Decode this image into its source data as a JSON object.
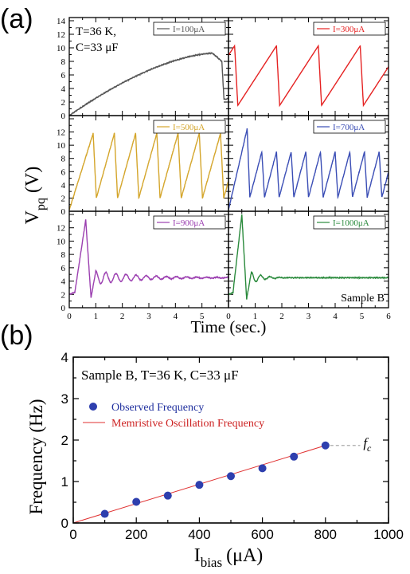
{
  "chart_data": [
    {
      "panel_label": "(a)",
      "type": "line",
      "ylabel": "V",
      "ylabel_sub": "pq",
      "ylabel_unit": "(V)",
      "xlabel": "Time (sec.)",
      "xlim": [
        0,
        6
      ],
      "x_ticks": [
        "0",
        "1",
        "2",
        "3",
        "4",
        "5",
        "6"
      ],
      "annotation_conditions": [
        "T=36 K,",
        "C=33 μF"
      ],
      "annotation_sample": "Sample B",
      "subplots": [
        {
          "legend": "I=100μA",
          "color": "#555555",
          "ylim": [
            0,
            14
          ],
          "y_ticks": [
            "0",
            "2",
            "4",
            "6",
            "8",
            "10",
            "12",
            "14"
          ],
          "pattern": "ramp",
          "params": {
            "peak": 9.2,
            "peak_t": 5.4,
            "drop_t": 5.75,
            "low": 2.4
          }
        },
        {
          "legend": "I=300μA",
          "color": "#e52222",
          "ylim": [
            0,
            14
          ],
          "y_ticks": [],
          "pattern": "saw",
          "params": {
            "t0": -0.1,
            "v0": 8.3,
            "period": 1.57,
            "low": 1.5,
            "high": 10.3,
            "fall": 0.12
          }
        },
        {
          "legend": "I=500μA",
          "color": "#d4a52a",
          "ylim": [
            0,
            14
          ],
          "y_ticks": [
            "0",
            "2",
            "4",
            "6",
            "8",
            "10",
            "12"
          ],
          "pattern": "saw",
          "params": {
            "t0": 0.0,
            "v0": 0.2,
            "period": 0.8,
            "first_peak_t": 0.9,
            "low": 2.0,
            "high": 11.8,
            "fall": 0.12
          }
        },
        {
          "legend": "I=700μA",
          "color": "#3a4db5",
          "ylim": [
            0,
            14
          ],
          "y_ticks": [],
          "pattern": "saw",
          "params": {
            "t0": 0.0,
            "v0": 0.2,
            "period": 0.55,
            "first_peak_t": 0.7,
            "low": 2.1,
            "high": 9.0,
            "first_high": 12.5,
            "fall": 0.1
          }
        },
        {
          "legend": "I=900μA",
          "color": "#9b3fb0",
          "ylim": [
            0,
            14
          ],
          "y_ticks": [
            "0",
            "2",
            "4",
            "6",
            "8",
            "10",
            "12"
          ],
          "pattern": "damped",
          "params": {
            "peak": 13.2,
            "peak_t": 0.62,
            "trough": 1.5,
            "trough_t": 0.82,
            "steady": 4.5,
            "amp": 1.0,
            "period": 0.38,
            "decay": 0.6
          }
        },
        {
          "legend": "I=1000μA",
          "color": "#2a8a3c",
          "ylim": [
            0,
            14
          ],
          "y_ticks": [],
          "pattern": "damped",
          "params": {
            "peak": 14.0,
            "peak_t": 0.5,
            "trough": 1.3,
            "trough_t": 0.68,
            "steady": 4.5,
            "amp": 0.9,
            "period": 0.35,
            "decay": 2.5
          }
        }
      ]
    },
    {
      "panel_label": "(b)",
      "type": "scatter",
      "title": "Sample B, T=36 K, C=33 μF",
      "xlabel": "I",
      "xlabel_sub": "bias",
      "xlabel_unit": "(μA)",
      "ylabel": "Frequency (Hz)",
      "xlim": [
        0,
        1000
      ],
      "ylim": [
        0,
        4
      ],
      "x_ticks": [
        0,
        200,
        400,
        600,
        800,
        1000
      ],
      "y_ticks": [
        0,
        1,
        2,
        3,
        4
      ],
      "series": [
        {
          "name": "Observed Frequency",
          "color": "#2e3fae",
          "x": [
            100,
            200,
            300,
            400,
            500,
            600,
            700,
            800
          ],
          "y": [
            0.22,
            0.51,
            0.66,
            0.92,
            1.13,
            1.32,
            1.6,
            1.87
          ]
        },
        {
          "name": "Memristive Oscillation Frequency",
          "color": "#e03030",
          "x": [
            0,
            800
          ],
          "y": [
            0,
            1.87
          ]
        }
      ],
      "annotation": "f",
      "annotation_sub": "c",
      "annotation_y": 1.87
    }
  ]
}
